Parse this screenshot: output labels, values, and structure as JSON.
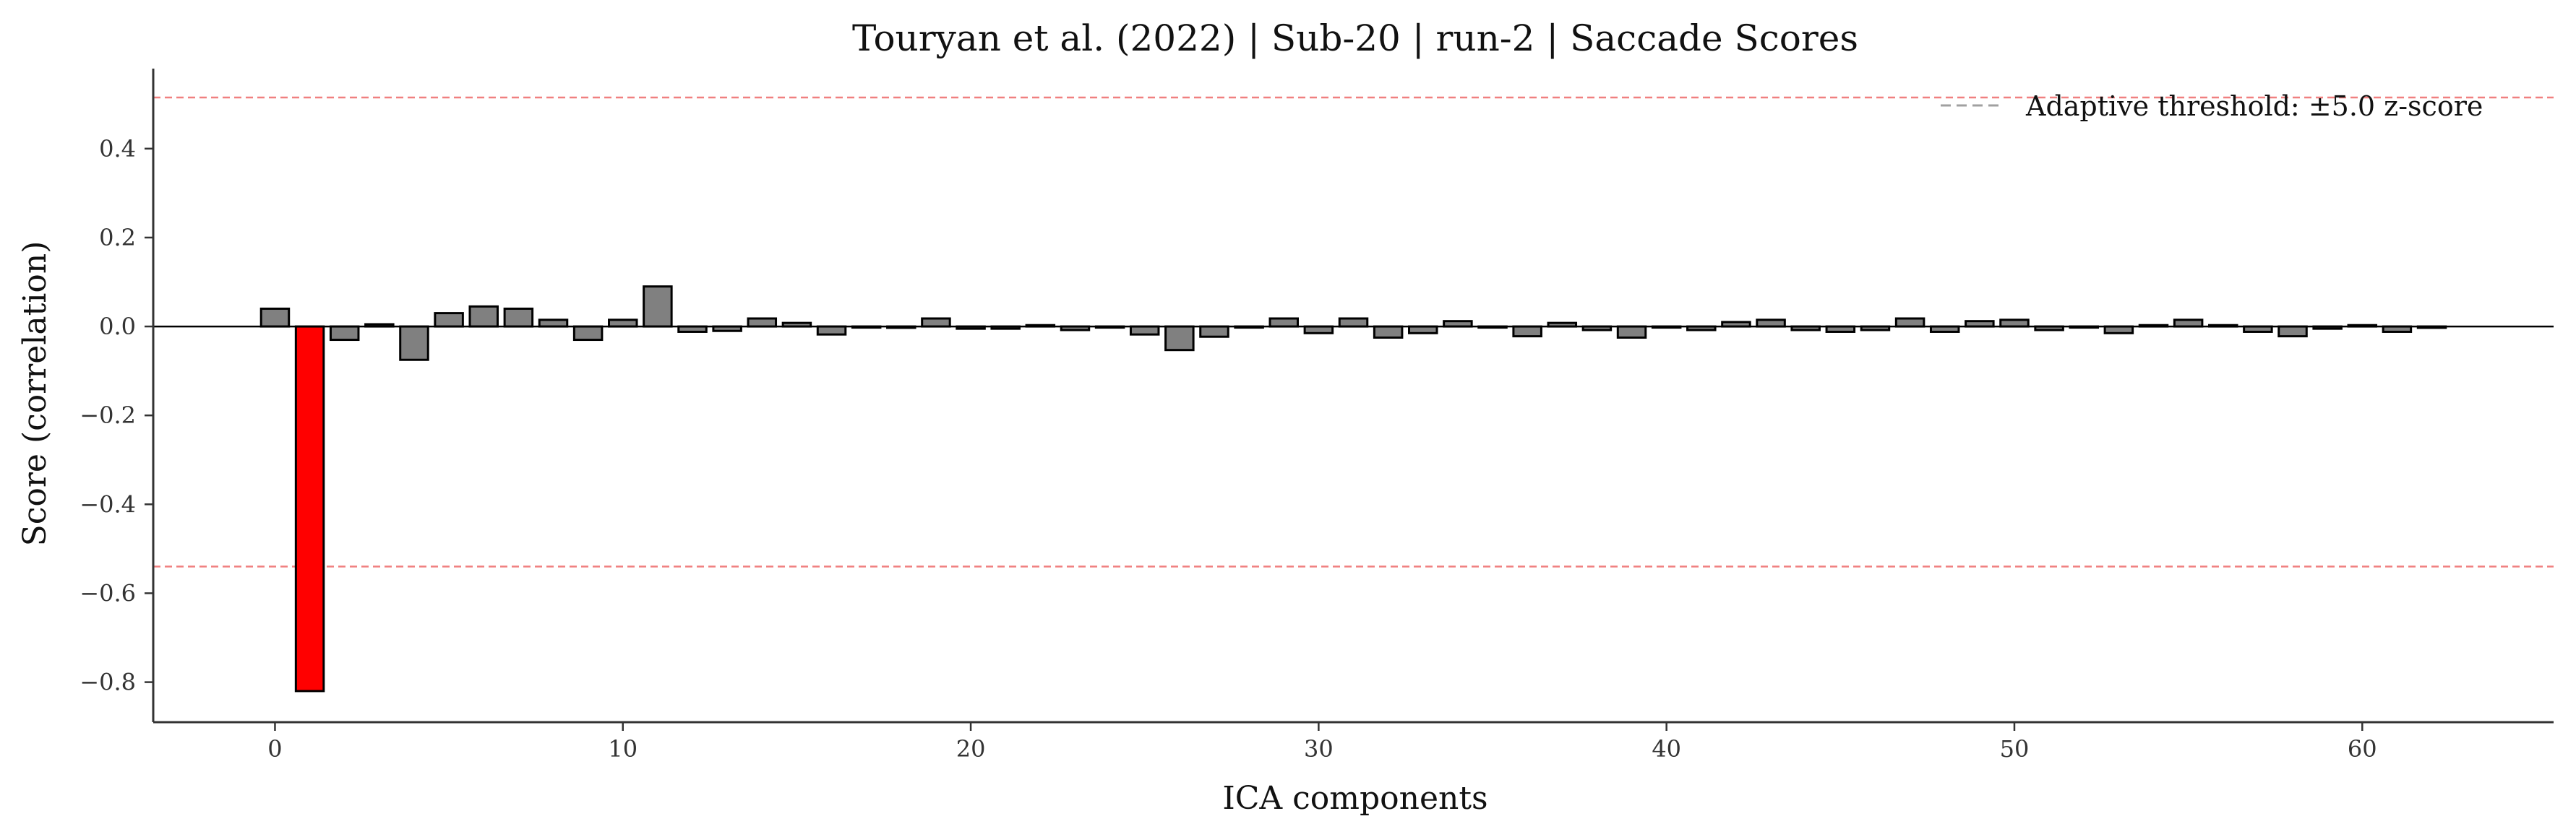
{
  "chart_data": {
    "type": "bar",
    "title": "Touryan et al. (2022) | Sub-20 | run-2 | Saccade Scores",
    "xlabel": "ICA components",
    "ylabel": "Score (correlation)",
    "xlim": [
      -3.5,
      65.5
    ],
    "ylim": [
      -0.89,
      0.58
    ],
    "xticks": [
      0,
      10,
      20,
      30,
      40,
      50,
      60
    ],
    "yticks": [
      -0.8,
      -0.6,
      -0.4,
      -0.2,
      0.0,
      0.2,
      0.4
    ],
    "ytick_labels": [
      "−0.8",
      "−0.6",
      "−0.4",
      "−0.2",
      "0.0",
      "0.2",
      "0.4"
    ],
    "x": [
      0,
      1,
      2,
      3,
      4,
      5,
      6,
      7,
      8,
      9,
      10,
      11,
      12,
      13,
      14,
      15,
      16,
      17,
      18,
      19,
      20,
      21,
      22,
      23,
      24,
      25,
      26,
      27,
      28,
      29,
      30,
      31,
      32,
      33,
      34,
      35,
      36,
      37,
      38,
      39,
      40,
      41,
      42,
      43,
      44,
      45,
      46,
      47,
      48,
      49,
      50,
      51,
      52,
      53,
      54,
      55,
      56,
      57,
      58,
      59,
      60,
      61,
      62
    ],
    "values": [
      0.04,
      -0.82,
      -0.03,
      0.005,
      -0.075,
      0.03,
      0.045,
      0.04,
      0.015,
      -0.03,
      0.015,
      0.09,
      -0.012,
      -0.01,
      0.018,
      0.008,
      -0.018,
      0.0,
      -0.003,
      0.018,
      -0.005,
      -0.005,
      0.003,
      -0.008,
      0.0,
      -0.018,
      -0.053,
      -0.023,
      0.0,
      0.018,
      -0.015,
      0.018,
      -0.025,
      -0.015,
      0.012,
      0.0,
      -0.022,
      0.008,
      -0.008,
      -0.025,
      0.0,
      -0.008,
      0.01,
      0.015,
      -0.008,
      -0.012,
      -0.008,
      0.018,
      -0.012,
      0.012,
      0.015,
      -0.008,
      0.0,
      -0.015,
      0.003,
      0.015,
      0.003,
      -0.012,
      -0.022,
      -0.005,
      0.003,
      -0.012,
      -0.003
    ],
    "highlighted_indices": [
      1
    ],
    "threshold": {
      "upper": 0.515,
      "lower": -0.54
    },
    "colors": {
      "bar": "#808080",
      "bar_highlight": "#ff0000",
      "bar_edge": "#000000",
      "threshold_line": "#f08080",
      "legend_line": "#a0a0a0",
      "zero_line": "#000000"
    },
    "legend": {
      "label": "Adaptive threshold: ±5.0 z-score",
      "position": "top-right"
    },
    "grid": false
  }
}
